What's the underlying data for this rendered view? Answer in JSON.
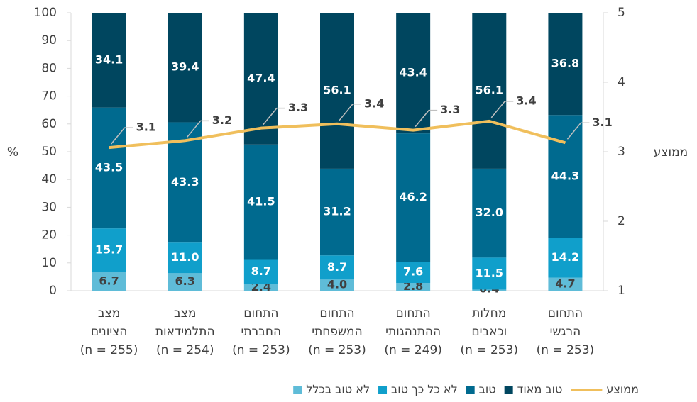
{
  "chart_data": {
    "type": "stacked_bar_line",
    "categories": [
      [
        "מצב",
        "הציונים"
      ],
      [
        "מצב",
        "התלמידאות"
      ],
      [
        "התחום",
        "החברתי"
      ],
      [
        "התחום",
        "המשפחתי"
      ],
      [
        "התחום",
        "ההתנהגותי"
      ],
      [
        "מחלות",
        "וכאבים"
      ],
      [
        "התחום",
        "הרגשי"
      ]
    ],
    "category_notes": [
      "(n = 255)",
      "(n = 254)",
      "(n = 253)",
      "(n = 253)",
      "(n = 249)",
      "(n = 253)",
      "(n = 253)"
    ],
    "series": [
      {
        "name": "לא טוב בכלל",
        "color": "#5fbcd8",
        "label_color": "#404040",
        "values": [
          6.7,
          6.3,
          2.4,
          4.0,
          2.8,
          0.4,
          4.7
        ],
        "value_labels": [
          "6.7",
          "6.3",
          "2.4",
          "4.0",
          "2.8",
          "0.4",
          "4.7"
        ]
      },
      {
        "name": "לא כל כך טוב",
        "color": "#109fcb",
        "label_color": "#ffffff",
        "values": [
          15.7,
          11.0,
          8.7,
          8.7,
          7.6,
          11.5,
          14.2
        ],
        "value_labels": [
          "15.7",
          "11.0",
          "8.7",
          "8.7",
          "7.6",
          "11.5",
          "14.2"
        ]
      },
      {
        "name": "טוב",
        "color": "#006a8f",
        "label_color": "#ffffff",
        "values": [
          43.5,
          43.3,
          41.5,
          31.2,
          46.2,
          32.0,
          44.3
        ],
        "value_labels": [
          "43.5",
          "43.3",
          "41.5",
          "31.2",
          "46.2",
          "32.0",
          "44.3"
        ]
      },
      {
        "name": "טוב מאוד",
        "color": "#00465f",
        "label_color": "#ffffff",
        "values": [
          34.1,
          39.4,
          47.4,
          56.1,
          43.4,
          56.1,
          36.8
        ],
        "value_labels": [
          "34.1",
          "39.4",
          "47.4",
          "56.1",
          "43.4",
          "56.1",
          "36.8"
        ]
      },
      {
        "name": "ממוצע",
        "color": "#f0bf5c",
        "axis": "y2",
        "values": [
          3.06,
          3.16,
          3.34,
          3.4,
          3.31,
          3.44,
          3.13
        ],
        "value_labels": [
          "3.1",
          "3.2",
          "3.3",
          "3.4",
          "3.3",
          "3.4",
          "3.1"
        ]
      }
    ],
    "ylabel": "%",
    "y2label": "ממוצע",
    "ylim": [
      0,
      100
    ],
    "yticks": [
      0,
      10,
      20,
      30,
      40,
      50,
      60,
      70,
      80,
      90,
      100
    ],
    "y2lim": [
      1,
      5
    ],
    "y2ticks": [
      1,
      2,
      3,
      4,
      5
    ]
  }
}
